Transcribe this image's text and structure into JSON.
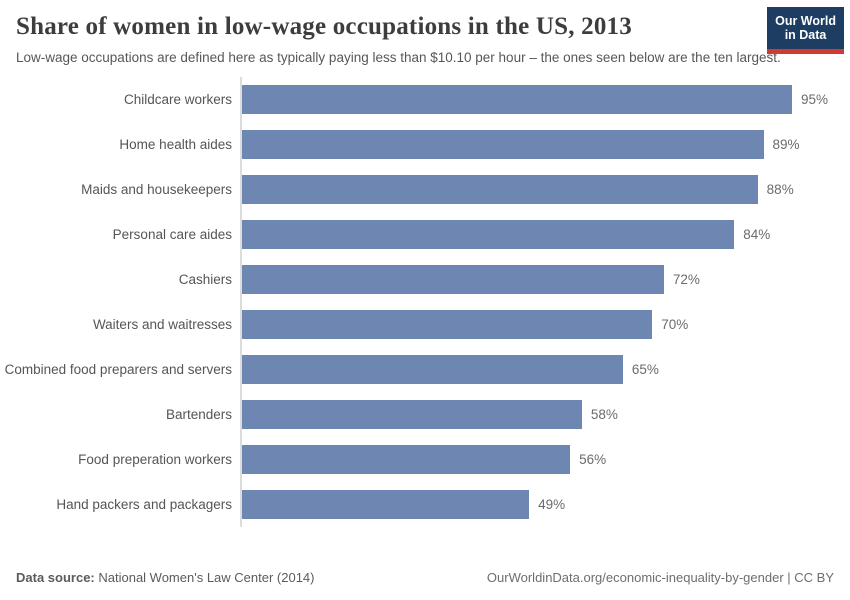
{
  "header": {
    "title": "Share of women in low-wage occupations in the US, 2013",
    "subtitle": "Low-wage occupations are defined here as typically paying less than $10.10 per hour – the ones seen below are the ten largest.",
    "logo_line1": "Our World",
    "logo_line2": "in Data"
  },
  "chart_data": {
    "type": "bar",
    "orientation": "horizontal",
    "title": "Share of women in low-wage occupations in the US, 2013",
    "xlabel": "",
    "ylabel": "",
    "xlim": [
      0,
      100
    ],
    "grid": false,
    "legend": false,
    "categories": [
      "Childcare workers",
      "Home health aides",
      "Maids and housekeepers",
      "Personal care aides",
      "Cashiers",
      "Waiters and waitresses",
      "Combined food preparers and servers",
      "Bartenders",
      "Food preperation workers",
      "Hand packers and packagers"
    ],
    "values": [
      95,
      89,
      88,
      84,
      72,
      70,
      65,
      58,
      56,
      49
    ],
    "display_values": [
      "95%",
      "89%",
      "88%",
      "84%",
      "72%",
      "70%",
      "65%",
      "58%",
      "56%",
      "49%"
    ],
    "bar_color": "#6d87b2",
    "axis_line_color": "#dcdcdc"
  },
  "footer": {
    "datasource_label": "Data source:",
    "datasource_value": " National Women's Law Center (2014)",
    "link": "OurWorldinData.org/economic-inequality-by-gender | CC BY"
  },
  "colors": {
    "logo_background": "#1d3d63",
    "logo_accent": "#cf3b33",
    "title_text": "#3d3d3d",
    "body_text": "#555555"
  }
}
